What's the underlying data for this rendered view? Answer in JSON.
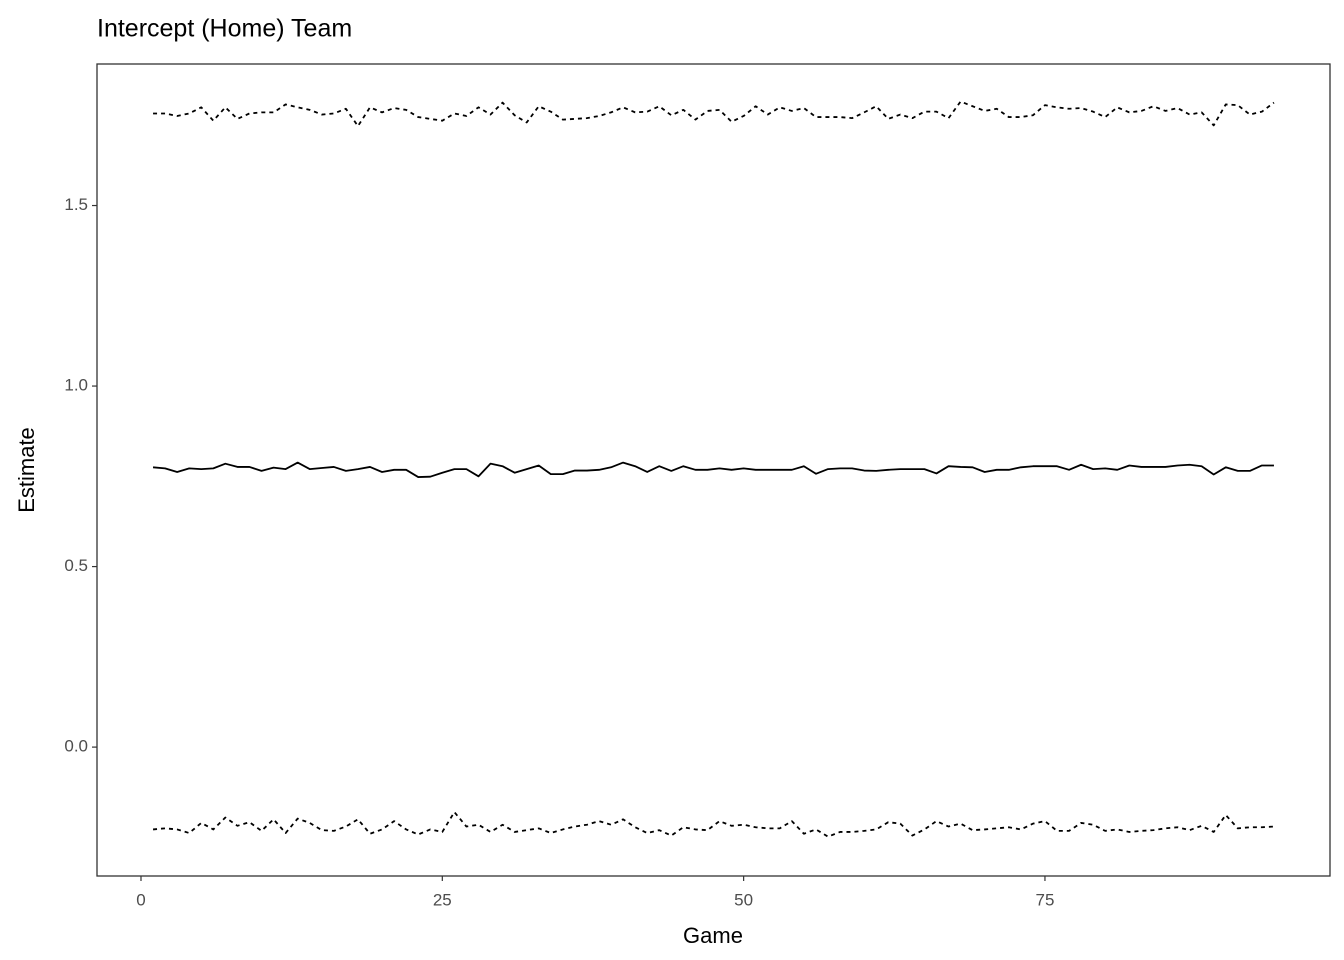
{
  "chart_data": {
    "type": "line",
    "title": "Intercept (Home) Team",
    "xlabel": "Game",
    "ylabel": "Estimate",
    "x": [
      1,
      2,
      3,
      4,
      5,
      6,
      7,
      8,
      9,
      10,
      11,
      12,
      13,
      14,
      15,
      16,
      17,
      18,
      19,
      20,
      21,
      22,
      23,
      24,
      25,
      26,
      27,
      28,
      29,
      30,
      31,
      32,
      33,
      34,
      35,
      36,
      37,
      38,
      39,
      40,
      41,
      42,
      43,
      44,
      45,
      46,
      47,
      48,
      49,
      50,
      51,
      52,
      53,
      54,
      55,
      56,
      57,
      58,
      59,
      60,
      61,
      62,
      63,
      64,
      65,
      66,
      67,
      68,
      69,
      70,
      71,
      72,
      73,
      74,
      75,
      76,
      77,
      78,
      79,
      80,
      81,
      82,
      83,
      84,
      85,
      86,
      87,
      88,
      89,
      90,
      91,
      92,
      93,
      94
    ],
    "series": [
      {
        "color": "#000000",
        "linestyle": "dashed",
        "values": [
          1.755,
          1.755,
          1.748,
          1.755,
          1.772,
          1.735,
          1.772,
          1.74,
          1.755,
          1.758,
          1.758,
          1.78,
          1.772,
          1.765,
          1.752,
          1.755,
          1.768,
          1.72,
          1.772,
          1.758,
          1.77,
          1.765,
          1.745,
          1.74,
          1.735,
          1.755,
          1.748,
          1.772,
          1.752,
          1.785,
          1.75,
          1.73,
          1.775,
          1.76,
          1.738,
          1.74,
          1.742,
          1.748,
          1.758,
          1.772,
          1.758,
          1.76,
          1.775,
          1.75,
          1.765,
          1.738,
          1.762,
          1.765,
          1.732,
          1.748,
          1.775,
          1.752,
          1.772,
          1.762,
          1.77,
          1.745,
          1.745,
          1.745,
          1.742,
          1.758,
          1.775,
          1.74,
          1.752,
          1.742,
          1.76,
          1.76,
          1.742,
          1.788,
          1.775,
          1.762,
          1.768,
          1.745,
          1.745,
          1.75,
          1.778,
          1.772,
          1.768,
          1.77,
          1.76,
          1.745,
          1.772,
          1.758,
          1.762,
          1.775,
          1.762,
          1.77,
          1.752,
          1.758,
          1.722,
          1.78,
          1.778,
          1.752,
          1.76,
          1.785
        ]
      },
      {
        "color": "#000000",
        "linestyle": "solid",
        "values": [
          0.775,
          0.772,
          0.762,
          0.772,
          0.77,
          0.772,
          0.785,
          0.776,
          0.776,
          0.765,
          0.774,
          0.77,
          0.788,
          0.77,
          0.773,
          0.776,
          0.765,
          0.77,
          0.776,
          0.762,
          0.768,
          0.768,
          0.748,
          0.749,
          0.76,
          0.77,
          0.77,
          0.75,
          0.785,
          0.778,
          0.76,
          0.77,
          0.78,
          0.756,
          0.756,
          0.766,
          0.766,
          0.768,
          0.775,
          0.788,
          0.778,
          0.762,
          0.778,
          0.765,
          0.778,
          0.768,
          0.768,
          0.772,
          0.768,
          0.772,
          0.768,
          0.768,
          0.768,
          0.768,
          0.778,
          0.757,
          0.77,
          0.772,
          0.772,
          0.766,
          0.765,
          0.768,
          0.77,
          0.77,
          0.77,
          0.758,
          0.778,
          0.776,
          0.775,
          0.762,
          0.768,
          0.768,
          0.775,
          0.778,
          0.778,
          0.778,
          0.768,
          0.782,
          0.77,
          0.772,
          0.768,
          0.78,
          0.776,
          0.776,
          0.776,
          0.78,
          0.782,
          0.778,
          0.755,
          0.775,
          0.765,
          0.765,
          0.78,
          0.78
        ]
      },
      {
        "color": "#000000",
        "linestyle": "dashed",
        "values": [
          -0.228,
          -0.225,
          -0.228,
          -0.238,
          -0.21,
          -0.228,
          -0.195,
          -0.218,
          -0.208,
          -0.232,
          -0.2,
          -0.238,
          -0.198,
          -0.21,
          -0.23,
          -0.232,
          -0.22,
          -0.2,
          -0.24,
          -0.228,
          -0.205,
          -0.228,
          -0.242,
          -0.228,
          -0.235,
          -0.18,
          -0.22,
          -0.215,
          -0.235,
          -0.215,
          -0.235,
          -0.23,
          -0.225,
          -0.238,
          -0.228,
          -0.22,
          -0.215,
          -0.205,
          -0.215,
          -0.2,
          -0.222,
          -0.238,
          -0.23,
          -0.245,
          -0.222,
          -0.228,
          -0.23,
          -0.205,
          -0.218,
          -0.215,
          -0.222,
          -0.225,
          -0.225,
          -0.205,
          -0.24,
          -0.228,
          -0.248,
          -0.235,
          -0.235,
          -0.232,
          -0.228,
          -0.208,
          -0.212,
          -0.245,
          -0.228,
          -0.205,
          -0.22,
          -0.212,
          -0.23,
          -0.228,
          -0.225,
          -0.222,
          -0.228,
          -0.212,
          -0.205,
          -0.232,
          -0.232,
          -0.21,
          -0.215,
          -0.232,
          -0.228,
          -0.235,
          -0.232,
          -0.23,
          -0.225,
          -0.222,
          -0.23,
          -0.218,
          -0.235,
          -0.188,
          -0.225,
          -0.222,
          -0.222,
          -0.22
        ]
      }
    ],
    "xlim": [
      -3.65,
      98.65
    ],
    "xticks": [
      0,
      25,
      50,
      75
    ],
    "ylim": [
      -0.357,
      1.892
    ],
    "yticks": [
      {
        "value": 0,
        "label": "0.0"
      },
      0.5,
      {
        "value": 1,
        "label": "1.0"
      },
      1.5
    ],
    "grid": false
  }
}
